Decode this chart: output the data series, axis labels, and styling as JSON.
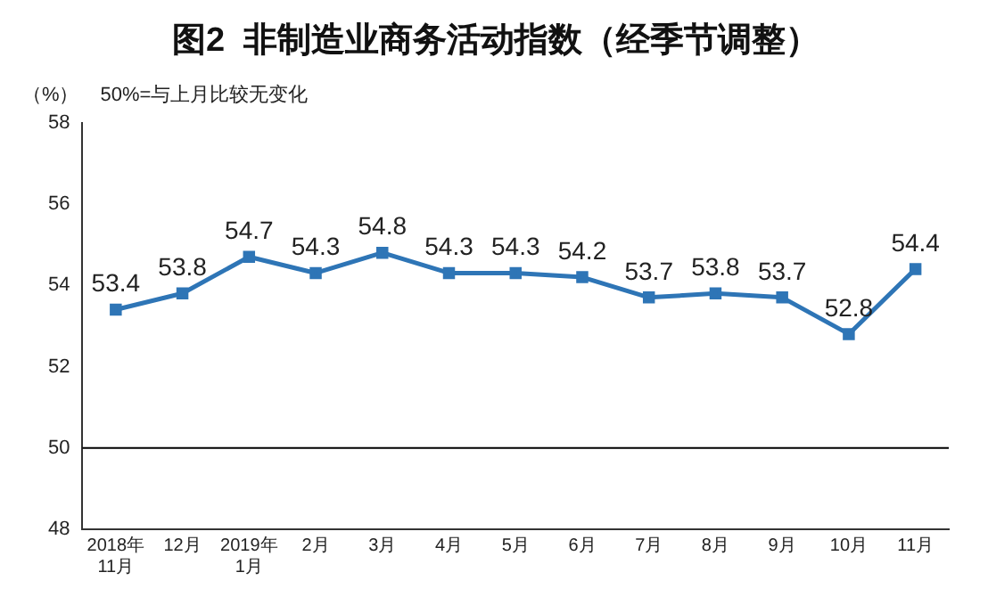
{
  "chart_data": {
    "type": "line",
    "title": "图2  非制造业商务活动指数（经季节调整）",
    "ylabel": "（%）",
    "annotations": [
      "50%=与上月比较无变化"
    ],
    "categories": [
      "2018年\n11月",
      "12月",
      "2019年\n1月",
      "2月",
      "3月",
      "4月",
      "5月",
      "6月",
      "7月",
      "8月",
      "9月",
      "10月",
      "11月"
    ],
    "series": [
      {
        "color": "#2e75b6",
        "values": [
          53.4,
          53.8,
          54.7,
          54.3,
          54.8,
          54.3,
          54.3,
          54.2,
          53.7,
          53.8,
          53.7,
          52.8,
          54.4
        ]
      }
    ],
    "ylim": [
      48,
      58
    ],
    "yticks": [
      48,
      50,
      52,
      54,
      56,
      58
    ],
    "grid": false,
    "legend": false,
    "marker": "square",
    "data_labels": true,
    "ref_lines": [
      {
        "axis": "y",
        "value": 50,
        "color": "#000000"
      }
    ]
  }
}
